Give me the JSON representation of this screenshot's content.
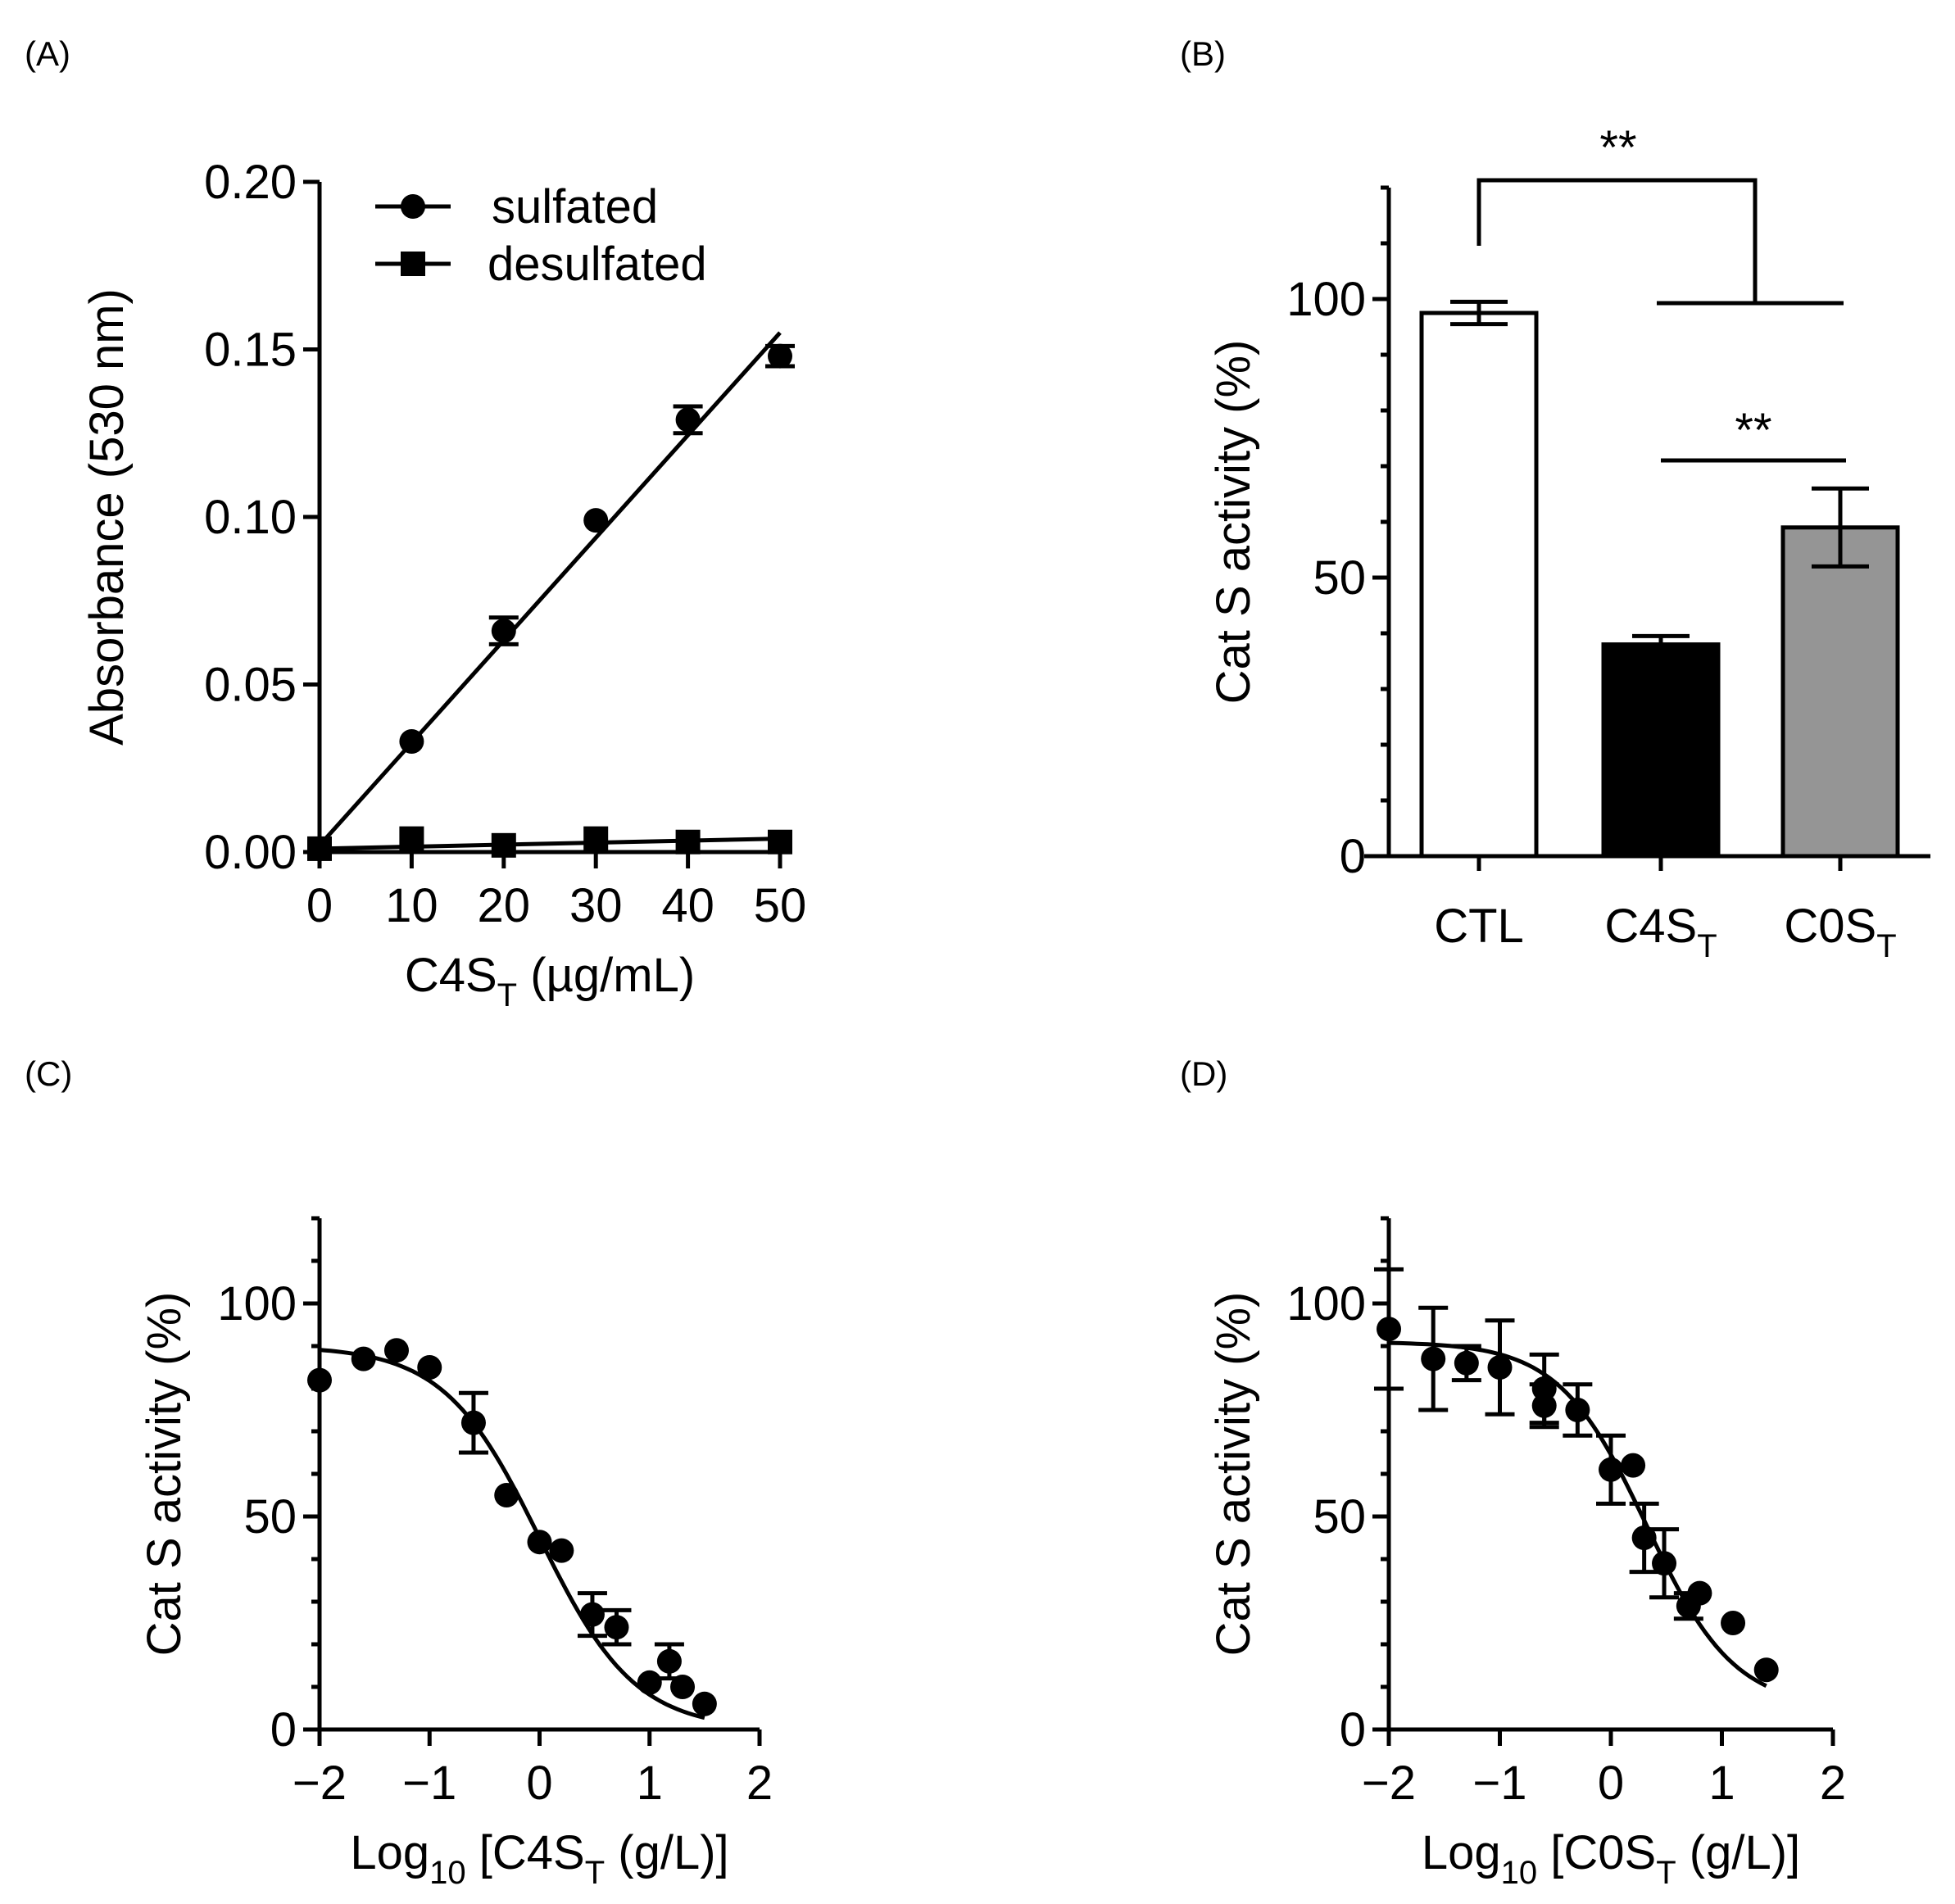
{
  "chart_data": [
    {
      "panel": "(A)",
      "type": "scatter",
      "xlabel": "C4S",
      "xlabel_sub": "T",
      "xlabel_unit": " (µg/mL)",
      "ylabel": "Absorbance (530 nm)",
      "xlim": [
        0,
        50
      ],
      "ylim": [
        0,
        0.2
      ],
      "xticks": [
        "0",
        "10",
        "20",
        "30",
        "40",
        "50"
      ],
      "yticks": [
        "0.00",
        "0.05",
        "0.10",
        "0.15",
        "0.20"
      ],
      "legend": [
        "sulfated",
        "desulfated"
      ],
      "legend_position": "top-left",
      "series": [
        {
          "name": "sulfated",
          "marker": "circle",
          "x": [
            0,
            10,
            20,
            30,
            40,
            50
          ],
          "y": [
            0.001,
            0.033,
            0.066,
            0.099,
            0.129,
            0.148
          ],
          "err": [
            0,
            0,
            0.004,
            0,
            0.004,
            0.003
          ],
          "fit": [
            0.002,
            0.155
          ]
        },
        {
          "name": "desulfated",
          "marker": "square",
          "x": [
            0,
            10,
            20,
            30,
            40,
            50
          ],
          "y": [
            0.001,
            0.004,
            0.002,
            0.004,
            0.003,
            0.003
          ],
          "err": [
            0,
            0,
            0,
            0,
            0,
            0
          ],
          "fit": [
            0.001,
            0.004
          ]
        }
      ]
    },
    {
      "panel": "(B)",
      "type": "bar",
      "ylabel": "Cat S activity (%)",
      "ylim": [
        0,
        120
      ],
      "yticks": [
        "0",
        "50",
        "100"
      ],
      "categories": [
        "CTL",
        "C4S",
        "C0S"
      ],
      "category_sub": "T",
      "values": [
        97.5,
        38,
        59
      ],
      "err": [
        2,
        1.5,
        7
      ],
      "colors": [
        "#ffffff",
        "#000000",
        "#959595"
      ],
      "annotations": [
        "**",
        "**"
      ]
    },
    {
      "panel": "(C)",
      "type": "scatter",
      "xlabel": "Log",
      "xlabel_sub": "10",
      "xlabel_rest": " [C4S",
      "xlabel_sub2": "T",
      "xlabel_end": " (g/L)]",
      "ylabel": "Cat S activity (%)",
      "xlim": [
        -2,
        2
      ],
      "ylim": [
        0,
        120
      ],
      "xticks": [
        "−2",
        "−1",
        "0",
        "1",
        "2"
      ],
      "yticks": [
        "0",
        "50",
        "100"
      ],
      "x": [
        -2,
        -1.6,
        -1.3,
        -1,
        -0.6,
        -0.3,
        0,
        0.2,
        0.48,
        0.7,
        1,
        1.18,
        1.3,
        1.5
      ],
      "y": [
        82,
        87,
        89,
        85,
        72,
        55,
        44,
        42,
        27,
        24,
        11,
        16,
        10,
        6
      ],
      "err": [
        0,
        0,
        0,
        0,
        7,
        0,
        0,
        0,
        5,
        4,
        0,
        4,
        0,
        0
      ],
      "fit": {
        "top": 90,
        "bottom": 0,
        "logIC50": 0,
        "hill": 1
      }
    },
    {
      "panel": "(D)",
      "type": "scatter",
      "xlabel": "Log",
      "xlabel_sub": "10",
      "xlabel_rest": " [C0S",
      "xlabel_sub2": "T",
      "xlabel_end": " (g/L)]",
      "ylabel": "Cat S activity (%)",
      "xlim": [
        -2,
        2
      ],
      "ylim": [
        0,
        120
      ],
      "xticks": [
        "−2",
        "−1",
        "0",
        "1",
        "2"
      ],
      "yticks": [
        "0",
        "50",
        "100"
      ],
      "x": [
        -2,
        -1.6,
        -1.3,
        -1,
        -0.6,
        -0.6,
        -0.3,
        0,
        0.2,
        0.3,
        0.48,
        0.7,
        0.8,
        1.1,
        1.4
      ],
      "y": [
        94,
        87,
        86,
        85,
        80,
        76,
        75,
        61,
        62,
        45,
        39,
        29,
        32,
        25,
        14
      ],
      "err": [
        14,
        12,
        4,
        11,
        8,
        5,
        6,
        8,
        0,
        8,
        8,
        3,
        0,
        0,
        0
      ],
      "fit": {
        "top": 91,
        "bottom": 5,
        "logIC50": 0.32,
        "hill": 1.1
      }
    }
  ]
}
